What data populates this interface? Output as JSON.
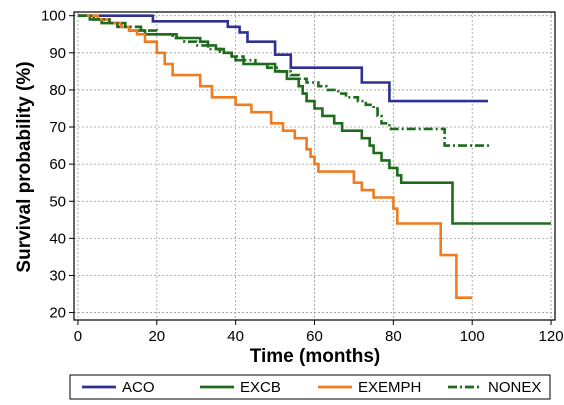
{
  "chart_data": {
    "type": "line",
    "title": "",
    "xlabel": "Time (months)",
    "ylabel": "Survival probability (%)",
    "xlim": [
      -1,
      121
    ],
    "ylim": [
      18,
      101
    ],
    "x_ticks": [
      "0",
      "20",
      "40",
      "60",
      "80",
      "100",
      "120"
    ],
    "y_ticks": [
      "20",
      "30",
      "40",
      "50",
      "60",
      "70",
      "80",
      "90",
      "100"
    ],
    "grid": true,
    "legend_position": "bottom",
    "step": true,
    "series": [
      {
        "name": "ACO",
        "color": "#2e3192",
        "dash": "solid",
        "points": [
          [
            0,
            100
          ],
          [
            19,
            100
          ],
          [
            19,
            98.5
          ],
          [
            38,
            98.5
          ],
          [
            38,
            97
          ],
          [
            41,
            97
          ],
          [
            41,
            95.5
          ],
          [
            43,
            95.5
          ],
          [
            43,
            93
          ],
          [
            50,
            93
          ],
          [
            50,
            89.5
          ],
          [
            54,
            89.5
          ],
          [
            54,
            86
          ],
          [
            72,
            86
          ],
          [
            72,
            82
          ],
          [
            79,
            82
          ],
          [
            79,
            77
          ],
          [
            104,
            77
          ]
        ]
      },
      {
        "name": "EXCB",
        "color": "#1e6b1e",
        "dash": "solid",
        "points": [
          [
            0,
            100
          ],
          [
            3,
            100
          ],
          [
            3,
            99
          ],
          [
            6,
            99
          ],
          [
            6,
            98
          ],
          [
            10,
            98
          ],
          [
            10,
            97
          ],
          [
            13,
            97
          ],
          [
            13,
            96
          ],
          [
            17,
            96
          ],
          [
            17,
            95
          ],
          [
            25,
            95
          ],
          [
            25,
            94
          ],
          [
            31,
            94
          ],
          [
            31,
            93
          ],
          [
            33,
            93
          ],
          [
            33,
            92
          ],
          [
            35,
            92
          ],
          [
            35,
            91
          ],
          [
            37,
            91
          ],
          [
            37,
            90
          ],
          [
            39,
            90
          ],
          [
            39,
            89
          ],
          [
            40,
            89
          ],
          [
            40,
            88
          ],
          [
            42,
            88
          ],
          [
            42,
            87
          ],
          [
            50,
            87
          ],
          [
            50,
            85
          ],
          [
            53,
            85
          ],
          [
            53,
            83
          ],
          [
            56,
            83
          ],
          [
            56,
            81
          ],
          [
            57,
            81
          ],
          [
            57,
            79
          ],
          [
            58,
            79
          ],
          [
            58,
            77
          ],
          [
            60,
            77
          ],
          [
            60,
            75
          ],
          [
            62,
            75
          ],
          [
            62,
            73
          ],
          [
            65,
            73
          ],
          [
            65,
            71
          ],
          [
            67,
            71
          ],
          [
            67,
            69
          ],
          [
            72,
            69
          ],
          [
            72,
            67
          ],
          [
            74,
            67
          ],
          [
            74,
            65
          ],
          [
            75,
            65
          ],
          [
            75,
            63
          ],
          [
            77,
            63
          ],
          [
            77,
            61
          ],
          [
            79,
            61
          ],
          [
            79,
            59
          ],
          [
            81,
            59
          ],
          [
            81,
            57
          ],
          [
            82,
            57
          ],
          [
            82,
            55
          ],
          [
            95,
            55
          ],
          [
            95,
            44
          ],
          [
            120,
            44
          ]
        ]
      },
      {
        "name": "EXEMPH",
        "color": "#f07c1f",
        "dash": "solid",
        "points": [
          [
            0,
            100
          ],
          [
            5,
            100
          ],
          [
            5,
            99
          ],
          [
            8,
            99
          ],
          [
            8,
            98
          ],
          [
            11,
            98
          ],
          [
            11,
            97
          ],
          [
            13,
            97
          ],
          [
            13,
            96
          ],
          [
            15,
            96
          ],
          [
            15,
            95
          ],
          [
            17,
            95
          ],
          [
            17,
            93
          ],
          [
            20,
            93
          ],
          [
            20,
            90
          ],
          [
            22,
            90
          ],
          [
            22,
            87
          ],
          [
            24,
            87
          ],
          [
            24,
            84
          ],
          [
            31,
            84
          ],
          [
            31,
            81
          ],
          [
            34,
            81
          ],
          [
            34,
            78
          ],
          [
            40,
            78
          ],
          [
            40,
            76
          ],
          [
            44,
            76
          ],
          [
            44,
            74
          ],
          [
            49,
            74
          ],
          [
            49,
            71
          ],
          [
            52,
            71
          ],
          [
            52,
            69
          ],
          [
            55,
            69
          ],
          [
            55,
            67
          ],
          [
            58,
            67
          ],
          [
            58,
            64
          ],
          [
            59,
            64
          ],
          [
            59,
            62
          ],
          [
            60,
            62
          ],
          [
            60,
            60
          ],
          [
            61,
            60
          ],
          [
            61,
            58
          ],
          [
            70,
            58
          ],
          [
            70,
            55
          ],
          [
            72,
            55
          ],
          [
            72,
            53
          ],
          [
            75,
            53
          ],
          [
            75,
            51
          ],
          [
            80,
            51
          ],
          [
            80,
            48
          ],
          [
            81,
            48
          ],
          [
            81,
            44
          ],
          [
            92,
            44
          ],
          [
            92,
            35.5
          ],
          [
            96,
            35.5
          ],
          [
            96,
            24
          ],
          [
            100,
            24
          ]
        ]
      },
      {
        "name": "NONEX",
        "color": "#1e6b1e",
        "dash": "dashdot",
        "points": [
          [
            0,
            100
          ],
          [
            4,
            100
          ],
          [
            4,
            99
          ],
          [
            8,
            99
          ],
          [
            8,
            98
          ],
          [
            12,
            98
          ],
          [
            12,
            97
          ],
          [
            16,
            97
          ],
          [
            16,
            96
          ],
          [
            20,
            96
          ],
          [
            20,
            95
          ],
          [
            24,
            95
          ],
          [
            24,
            94
          ],
          [
            27,
            94
          ],
          [
            27,
            93
          ],
          [
            30,
            93
          ],
          [
            30,
            92
          ],
          [
            33,
            92
          ],
          [
            33,
            91
          ],
          [
            36,
            91
          ],
          [
            36,
            90
          ],
          [
            39,
            90
          ],
          [
            39,
            89
          ],
          [
            42,
            89
          ],
          [
            42,
            88
          ],
          [
            45,
            88
          ],
          [
            45,
            87
          ],
          [
            48,
            87
          ],
          [
            48,
            86
          ],
          [
            51,
            86
          ],
          [
            51,
            85
          ],
          [
            54,
            85
          ],
          [
            54,
            84
          ],
          [
            56,
            84
          ],
          [
            56,
            83
          ],
          [
            58,
            83
          ],
          [
            58,
            82
          ],
          [
            61,
            82
          ],
          [
            61,
            81
          ],
          [
            63,
            81
          ],
          [
            63,
            80
          ],
          [
            66,
            80
          ],
          [
            66,
            79
          ],
          [
            68,
            79
          ],
          [
            68,
            78
          ],
          [
            71,
            78
          ],
          [
            71,
            77
          ],
          [
            73,
            77
          ],
          [
            73,
            76
          ],
          [
            75,
            76
          ],
          [
            75,
            75
          ],
          [
            76,
            75
          ],
          [
            76,
            73
          ],
          [
            77,
            73
          ],
          [
            77,
            71
          ],
          [
            79,
            71
          ],
          [
            79,
            69.5
          ],
          [
            93,
            69.5
          ],
          [
            93,
            65
          ],
          [
            105,
            65
          ]
        ]
      }
    ]
  }
}
